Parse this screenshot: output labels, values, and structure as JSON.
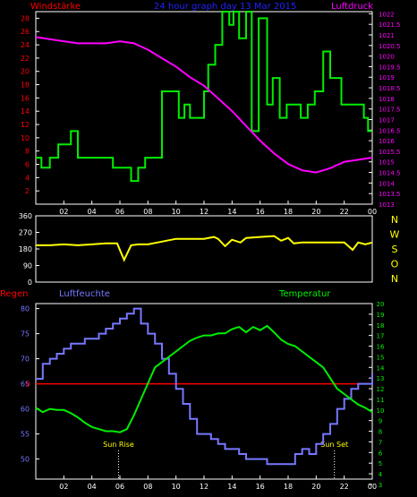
{
  "header": {
    "left_label": "Windstärke",
    "center_label": "24 hour graph day  13 Mar 2015",
    "right_label": "Luftdruck"
  },
  "colors": {
    "bg": "#000000",
    "frame": "#ffffff",
    "wind": "#00ee00",
    "pressure": "#ff00ff",
    "direction": "#ffff00",
    "humidity": "#7777ff",
    "temperature": "#00ee00",
    "rain": "#ff0000",
    "title_blue": "#2222ff",
    "dir_labels": "#ffff00",
    "sun": "#ffff00"
  },
  "x_ticks": [
    "02",
    "04",
    "06",
    "08",
    "10",
    "12",
    "14",
    "16",
    "18",
    "20",
    "22",
    "00"
  ],
  "chart_data": [
    {
      "type": "line",
      "name": "wind-pressure",
      "x_unit": "hour",
      "x_range": [
        0,
        24
      ],
      "left_axis": {
        "label": "Windstärke",
        "ticks": [
          "2",
          "4",
          "6",
          "8",
          "10",
          "12",
          "14",
          "16",
          "18",
          "20",
          "22",
          "24",
          "26",
          "28"
        ],
        "ylim": [
          0,
          29
        ]
      },
      "right_axis": {
        "label": "Luftdruck",
        "ticks": [
          "1013",
          "1013.5",
          "1014",
          "1014.5",
          "1015",
          "1015.5",
          "1016",
          "1016.5",
          "1017",
          "1017.5",
          "1018",
          "1018.5",
          "1019",
          "1019.5",
          "1020",
          "1020.5",
          "1021",
          "1021.5",
          "1022"
        ],
        "ylim": [
          1013,
          1022.1
        ]
      },
      "series": [
        {
          "name": "Windstärke",
          "axis": "left",
          "step": true,
          "x": [
            0,
            0.4,
            1,
            1.6,
            2.2,
            2.5,
            3,
            5,
            5.5,
            6.8,
            7.3,
            7.8,
            8,
            9,
            10.2,
            10.6,
            11,
            12,
            12.3,
            12.8,
            13.3,
            13.8,
            14.1,
            14.5,
            15,
            15.4,
            15.9,
            16.5,
            16.9,
            17.4,
            17.9,
            18.9,
            19.4,
            19.9,
            20.5,
            21,
            21.8,
            22.2,
            22.6,
            23,
            23.4,
            23.7,
            24
          ],
          "values": [
            7,
            5.5,
            7,
            9,
            9,
            11,
            7,
            7,
            5.5,
            3.5,
            5.5,
            7,
            7,
            17,
            13,
            15,
            13,
            17,
            21,
            24,
            29,
            27,
            29,
            25,
            29,
            11,
            28,
            15,
            19,
            13,
            15,
            13,
            15,
            17,
            23,
            19,
            15,
            15,
            15,
            15,
            13,
            11,
            11
          ]
        },
        {
          "name": "Luftdruck",
          "axis": "right",
          "x": [
            0,
            1,
            2,
            3,
            4,
            5,
            6,
            7,
            8,
            9,
            10,
            11,
            12,
            13,
            14,
            15,
            16,
            17,
            18,
            19,
            20,
            21,
            22,
            23,
            24
          ],
          "values": [
            1020.9,
            1020.8,
            1020.7,
            1020.6,
            1020.6,
            1020.6,
            1020.7,
            1020.6,
            1020.3,
            1019.9,
            1019.5,
            1019.0,
            1018.6,
            1018.0,
            1017.4,
            1016.7,
            1016.0,
            1015.4,
            1014.9,
            1014.6,
            1014.5,
            1014.7,
            1015.0,
            1015.1,
            1015.2
          ]
        }
      ]
    },
    {
      "type": "line",
      "name": "wind-direction",
      "x_unit": "hour",
      "x_range": [
        0,
        24
      ],
      "left_axis": {
        "ticks": [
          "0",
          "90",
          "180",
          "270",
          "360"
        ],
        "ylim": [
          0,
          360
        ]
      },
      "right_labels": [
        "N",
        "W",
        "S",
        "O",
        "N"
      ],
      "series": [
        {
          "name": "Windrichtung",
          "x": [
            0,
            1,
            2,
            3,
            4,
            5,
            5.8,
            6.3,
            6.8,
            7.3,
            8,
            9,
            10,
            11,
            12,
            12.7,
            13,
            13.5,
            14,
            14.6,
            15,
            16,
            17,
            17.5,
            18,
            18.4,
            19,
            20,
            21,
            22,
            22.6,
            23,
            23.5,
            24
          ],
          "values": [
            200,
            200,
            205,
            200,
            205,
            210,
            210,
            120,
            200,
            205,
            205,
            220,
            235,
            235,
            235,
            245,
            235,
            195,
            230,
            215,
            240,
            245,
            250,
            225,
            240,
            210,
            215,
            215,
            215,
            215,
            175,
            215,
            205,
            215
          ]
        }
      ]
    },
    {
      "type": "line",
      "name": "humidity-temperature",
      "x_unit": "hour",
      "x_range": [
        0,
        24
      ],
      "left_axis": {
        "label": "Luftfeuchte",
        "ticks": [
          "50",
          "55",
          "60",
          "65",
          "70",
          "75",
          "80"
        ],
        "ylim": [
          46,
          81
        ]
      },
      "right_axis": {
        "label": "Temperatur",
        "ticks": [
          "3",
          "4",
          "5",
          "6",
          "7",
          "8",
          "9",
          "10",
          "11",
          "12",
          "13",
          "14",
          "15",
          "16",
          "17",
          "18",
          "19",
          "20"
        ],
        "ylim": [
          3.5,
          20
        ]
      },
      "rain_label": "Regen",
      "rain_axis_label": "0",
      "rain_value": 0,
      "series": [
        {
          "name": "Luftfeuchte",
          "axis": "left",
          "x": [
            0,
            0.5,
            1,
            1.5,
            2,
            2.5,
            3,
            3.5,
            4,
            4.5,
            5,
            5.5,
            6,
            6.5,
            7,
            7.5,
            8,
            8.5,
            9,
            9.5,
            10,
            10.5,
            11,
            11.5,
            12,
            12.5,
            13,
            13.5,
            14,
            14.5,
            15,
            15.5,
            16,
            16.5,
            17,
            17.5,
            18,
            18.5,
            19,
            19.5,
            20,
            20.5,
            21,
            21.5,
            22,
            22.5,
            23,
            23.5,
            24
          ],
          "values": [
            66,
            69,
            70,
            71,
            72,
            73,
            73,
            74,
            74,
            75,
            76,
            77,
            78,
            79,
            80,
            77,
            75,
            73,
            70,
            67,
            64,
            61,
            58,
            55,
            55,
            54,
            53,
            52,
            52,
            51,
            50,
            50,
            50,
            49,
            49,
            49,
            49,
            51,
            52,
            51,
            53,
            55,
            57,
            60,
            62,
            64,
            65,
            65,
            67
          ]
        },
        {
          "name": "Temperatur",
          "axis": "right",
          "x": [
            0,
            0.5,
            1,
            1.5,
            2,
            2.5,
            3,
            3.5,
            4,
            4.5,
            5,
            5.5,
            6,
            6.5,
            7,
            7.5,
            8,
            8.5,
            9,
            9.5,
            10,
            10.5,
            11,
            11.5,
            12,
            12.5,
            13,
            13.5,
            14,
            14.5,
            15,
            15.5,
            16,
            16.5,
            17,
            17.5,
            18,
            18.5,
            19,
            19.5,
            20,
            20.5,
            21,
            21.5,
            22,
            22.5,
            23,
            23.5,
            24
          ],
          "values": [
            10.2,
            9.8,
            10.1,
            10,
            10,
            9.7,
            9.3,
            8.8,
            8.4,
            8.2,
            8,
            8,
            7.9,
            8.2,
            9.5,
            11,
            12.5,
            14,
            14.5,
            15,
            15.5,
            16,
            16.5,
            16.8,
            17,
            17,
            17.2,
            17.2,
            17.6,
            17.8,
            17.3,
            17.8,
            17.5,
            17.9,
            17.3,
            16.6,
            16.2,
            16,
            15.5,
            15,
            14.5,
            14,
            13,
            12,
            11.5,
            11,
            10.5,
            10.2,
            9.8
          ]
        }
      ],
      "annotations": [
        {
          "label": "Sun Rise",
          "x": 5.9
        },
        {
          "label": "Sun Set",
          "x": 21.3
        }
      ]
    }
  ]
}
